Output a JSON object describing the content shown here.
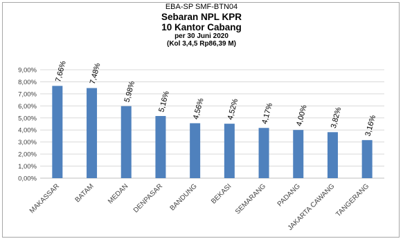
{
  "titles": {
    "line1": "EBA-SP  SMF-BTN04",
    "line2": "Sebaran NPL KPR",
    "line3": "10 Kantor Cabang",
    "line4": "per 30 Juni 2020",
    "line5": "(Kol 3,4,5 Rp86,39  M)"
  },
  "colors": {
    "bar": "#4f81bd",
    "grid": "#d9d9d9",
    "axis": "#bfbfbf"
  },
  "chart_data": {
    "type": "bar",
    "categories": [
      "MAKASSAR",
      "BATAM",
      "MEDAN",
      "DENPASAR",
      "BANDUNG",
      "BEKASI",
      "SEMARANG",
      "PADANG",
      "JAKARTA CAWANG",
      "TANGERANG"
    ],
    "values": [
      7.66,
      7.48,
      5.98,
      5.16,
      4.56,
      4.52,
      4.17,
      4.0,
      3.82,
      3.16
    ],
    "data_labels": [
      "7,66%",
      "7,48%",
      "5,98%",
      "5,16%",
      "4,56%",
      "4,52%",
      "4,17%",
      "4,00%",
      "3,82%",
      "3,16%"
    ],
    "yticks": [
      0,
      1,
      2,
      3,
      4,
      5,
      6,
      7,
      8,
      9
    ],
    "ytick_labels": [
      "0,00%",
      "1,00%",
      "2,00%",
      "3,00%",
      "4,00%",
      "5,00%",
      "6,00%",
      "7,00%",
      "8,00%",
      "9,00%"
    ],
    "ylim": [
      0,
      9
    ],
    "grid": true,
    "legend": "none"
  }
}
